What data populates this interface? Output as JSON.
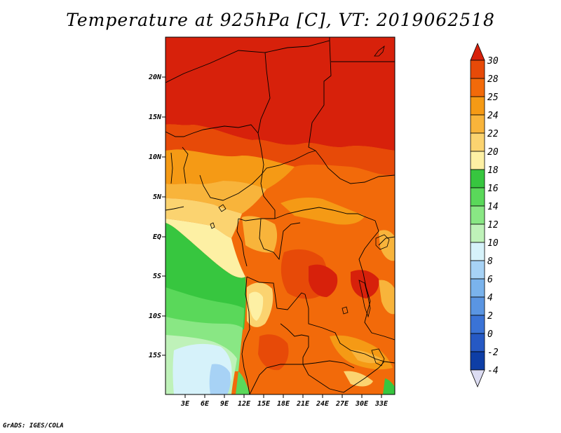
{
  "title": "Temperature at 925hPa [C], VT: 2019062518",
  "credit": "GrADS: IGES/COLA",
  "map": {
    "lat_labels": [
      "20N",
      "15N",
      "10N",
      "5N",
      "EQ",
      "5S",
      "10S",
      "15S"
    ],
    "lon_labels": [
      "3E",
      "6E",
      "9E",
      "12E",
      "15E",
      "18E",
      "21E",
      "24E",
      "27E",
      "30E",
      "33E"
    ]
  },
  "colorbar": {
    "levels": [
      "30",
      "28",
      "25",
      "24",
      "22",
      "20",
      "18",
      "16",
      "14",
      "12",
      "10",
      "8",
      "6",
      "4",
      "2",
      "0",
      "-2",
      "-4"
    ],
    "colors": [
      "#d7210b",
      "#e74a08",
      "#f26a0a",
      "#f59a15",
      "#f8b43b",
      "#fbd370",
      "#fdf0a4",
      "#37c63f",
      "#5ad85a",
      "#89e784",
      "#bff2b9",
      "#d6f2fa",
      "#a7d2f5",
      "#7ab3ec",
      "#5a95e2",
      "#3a73d6",
      "#2659c4",
      "#0e3ea6",
      "#061f77",
      "#dcdcf2"
    ]
  }
}
